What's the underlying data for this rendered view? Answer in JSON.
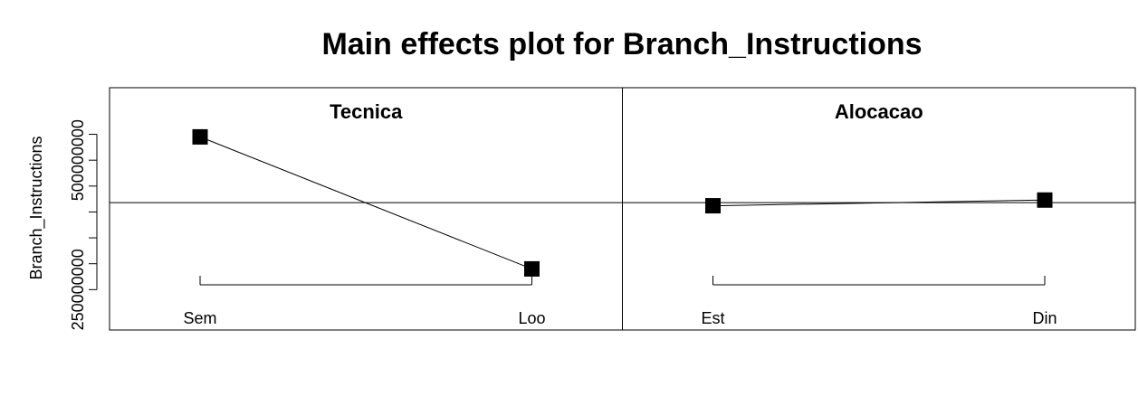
{
  "chart_data": {
    "type": "line",
    "title": "Main effects plot for Branch_Instructions",
    "ylabel": "Branch_Instructions",
    "ylim": [
      172000000,
      640000000
    ],
    "y_ticks": [
      250000000,
      300000000,
      350000000,
      400000000,
      450000000,
      500000000,
      550000000
    ],
    "y_tick_labels": [
      {
        "value": 250000000,
        "label": "250000000"
      },
      {
        "value": 500000000,
        "label": "500000000"
      }
    ],
    "grand_mean": 418000000,
    "panels": [
      {
        "title": "Tecnica",
        "categories": [
          "Sem",
          "Loo"
        ],
        "values": [
          545000000,
          290000000
        ]
      },
      {
        "title": "Alocacao",
        "categories": [
          "Est",
          "Din"
        ],
        "values": [
          412000000,
          423000000
        ]
      }
    ]
  }
}
